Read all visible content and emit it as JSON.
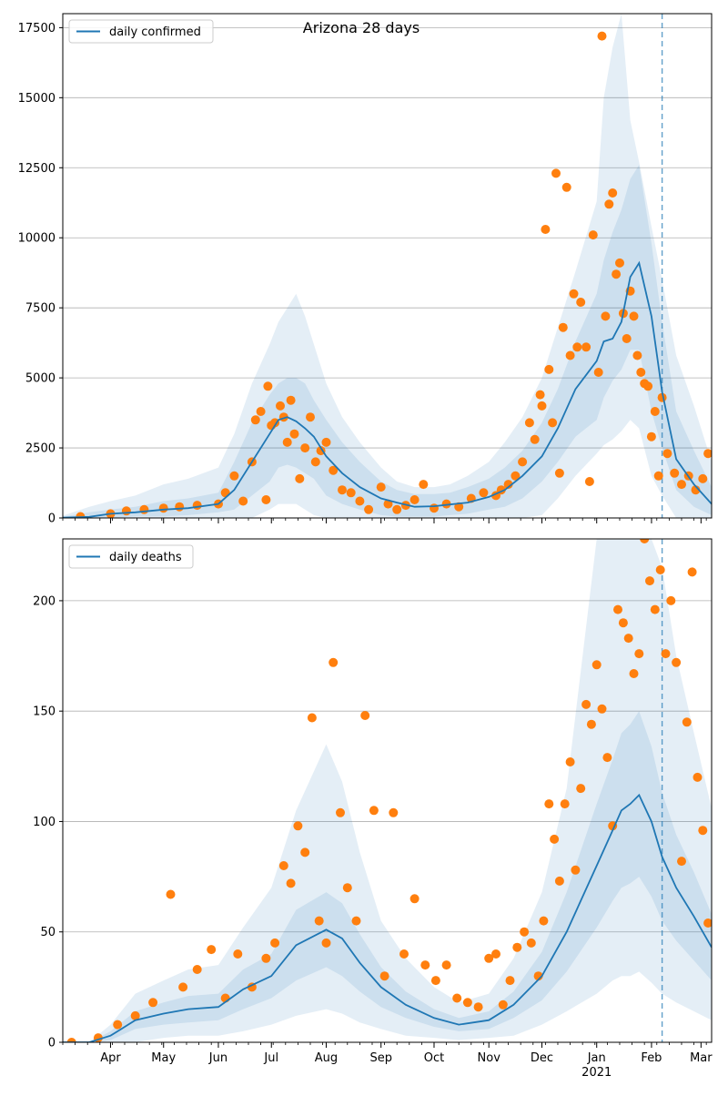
{
  "title": "Arizona 28 days",
  "colors": {
    "line": "#1f77b4",
    "points": "#ff7f0e",
    "band": "#1f77b4",
    "grid": "#b0b0b0",
    "vline": "#1f77b4"
  },
  "months": [
    "Apr",
    "May",
    "Jun",
    "Jul",
    "Aug",
    "Sep",
    "Oct",
    "Nov",
    "Dec",
    "Jan",
    "Feb",
    "Mar"
  ],
  "year_label": "2021",
  "chart_data": [
    {
      "type": "line",
      "legend": "daily confirmed",
      "legend_position": "top-left",
      "grid": "horizontal",
      "x_unit": "date",
      "x_range": [
        "2020-03-05",
        "2021-03-07"
      ],
      "ylim": [
        0,
        18000
      ],
      "yticks": [
        0,
        2500,
        5000,
        7500,
        10000,
        12500,
        15000,
        17500
      ],
      "ytick_labels": [
        "0",
        "2500",
        "5000",
        "7500",
        "10000",
        "12500",
        "15000",
        "17500"
      ],
      "forecast_start": "2021-02-07",
      "line": {
        "dates": [
          "2020-03-05",
          "2020-03-20",
          "2020-04-01",
          "2020-04-15",
          "2020-05-01",
          "2020-05-15",
          "2020-06-01",
          "2020-06-10",
          "2020-06-20",
          "2020-06-30",
          "2020-07-05",
          "2020-07-10",
          "2020-07-15",
          "2020-07-20",
          "2020-07-25",
          "2020-08-01",
          "2020-08-10",
          "2020-08-20",
          "2020-09-01",
          "2020-09-10",
          "2020-09-20",
          "2020-10-01",
          "2020-10-10",
          "2020-10-20",
          "2020-11-01",
          "2020-11-10",
          "2020-11-20",
          "2020-12-01",
          "2020-12-10",
          "2020-12-20",
          "2021-01-01",
          "2021-01-05",
          "2021-01-10",
          "2021-01-15",
          "2021-01-20",
          "2021-01-25",
          "2021-02-01",
          "2021-02-07",
          "2021-02-15",
          "2021-02-25",
          "2021-03-07"
        ],
        "values": [
          10,
          40,
          150,
          200,
          300,
          350,
          500,
          1000,
          2000,
          3000,
          3500,
          3600,
          3450,
          3200,
          2900,
          2200,
          1600,
          1100,
          700,
          550,
          400,
          420,
          480,
          550,
          750,
          1000,
          1500,
          2200,
          3200,
          4600,
          5600,
          6300,
          6400,
          7000,
          8600,
          9100,
          7200,
          4500,
          2100,
          1200,
          500
        ]
      },
      "band_inner": {
        "lower": [
          0,
          0,
          0,
          60,
          60,
          100,
          200,
          300,
          800,
          1300,
          1800,
          1900,
          1800,
          1600,
          1400,
          800,
          500,
          300,
          100,
          50,
          50,
          50,
          100,
          150,
          300,
          400,
          700,
          1300,
          2000,
          2900,
          3500,
          4300,
          4900,
          5300,
          6000,
          6000,
          3800,
          2500,
          1000,
          400,
          100
        ],
        "upper": [
          40,
          200,
          300,
          400,
          600,
          700,
          900,
          2000,
          3400,
          4400,
          4800,
          5000,
          5000,
          4800,
          4200,
          3500,
          2700,
          2000,
          1300,
          1000,
          850,
          850,
          900,
          1100,
          1400,
          1800,
          2400,
          3400,
          4600,
          6300,
          8000,
          9200,
          10200,
          11000,
          12100,
          12600,
          9800,
          7000,
          3800,
          2400,
          1100
        ]
      },
      "band_outer": {
        "lower": [
          0,
          0,
          0,
          0,
          0,
          0,
          0,
          0,
          0,
          300,
          500,
          500,
          500,
          300,
          100,
          0,
          0,
          0,
          0,
          0,
          0,
          0,
          0,
          0,
          0,
          0,
          0,
          100,
          700,
          1500,
          2300,
          2600,
          2800,
          3100,
          3500,
          3200,
          1500,
          800,
          0,
          0,
          0
        ],
        "upper": [
          80,
          400,
          600,
          800,
          1200,
          1400,
          1800,
          3000,
          4800,
          6200,
          7000,
          7500,
          8000,
          7200,
          6200,
          4800,
          3600,
          2700,
          1800,
          1300,
          1100,
          1100,
          1200,
          1500,
          2000,
          2700,
          3600,
          5000,
          6800,
          8800,
          11300,
          15000,
          16800,
          18000,
          14200,
          12700,
          10400,
          8500,
          5800,
          4000,
          2000
        ]
      },
      "points": {
        "dates": [
          "2020-03-15",
          "2020-04-01",
          "2020-04-10",
          "2020-04-20",
          "2020-05-01",
          "2020-05-10",
          "2020-05-20",
          "2020-06-01",
          "2020-06-05",
          "2020-06-10",
          "2020-06-15",
          "2020-06-20",
          "2020-06-22",
          "2020-06-25",
          "2020-06-28",
          "2020-06-29",
          "2020-07-01",
          "2020-07-03",
          "2020-07-06",
          "2020-07-08",
          "2020-07-10",
          "2020-07-12",
          "2020-07-14",
          "2020-07-17",
          "2020-07-20",
          "2020-07-23",
          "2020-07-26",
          "2020-07-29",
          "2020-08-01",
          "2020-08-05",
          "2020-08-10",
          "2020-08-15",
          "2020-08-20",
          "2020-08-25",
          "2020-09-01",
          "2020-09-05",
          "2020-09-10",
          "2020-09-15",
          "2020-09-20",
          "2020-09-25",
          "2020-10-01",
          "2020-10-08",
          "2020-10-15",
          "2020-10-22",
          "2020-10-29",
          "2020-11-05",
          "2020-11-08",
          "2020-11-12",
          "2020-11-16",
          "2020-11-20",
          "2020-11-24",
          "2020-11-27",
          "2020-11-30",
          "2020-12-01",
          "2020-12-03",
          "2020-12-05",
          "2020-12-07",
          "2020-12-09",
          "2020-12-11",
          "2020-12-13",
          "2020-12-15",
          "2020-12-17",
          "2020-12-19",
          "2020-12-21",
          "2020-12-23",
          "2020-12-26",
          "2020-12-28",
          "2020-12-30",
          "2021-01-02",
          "2021-01-04",
          "2021-01-06",
          "2021-01-08",
          "2021-01-10",
          "2021-01-12",
          "2021-01-14",
          "2021-01-16",
          "2021-01-18",
          "2021-01-20",
          "2021-01-22",
          "2021-01-24",
          "2021-01-26",
          "2021-01-28",
          "2021-01-30",
          "2021-02-01",
          "2021-02-03",
          "2021-02-05",
          "2021-02-07",
          "2021-02-10",
          "2021-02-14",
          "2021-02-18",
          "2021-02-22",
          "2021-02-26",
          "2021-03-02",
          "2021-03-05"
        ],
        "values": [
          50,
          150,
          250,
          300,
          350,
          400,
          450,
          500,
          900,
          1500,
          600,
          2000,
          3500,
          3800,
          650,
          4700,
          3300,
          3400,
          4000,
          3600,
          2700,
          4200,
          3000,
          1400,
          2500,
          3600,
          2000,
          2400,
          2700,
          1700,
          1000,
          900,
          600,
          300,
          1100,
          500,
          300,
          450,
          650,
          1200,
          350,
          500,
          400,
          700,
          900,
          800,
          1000,
          1200,
          1500,
          2000,
          3400,
          2800,
          4400,
          4000,
          10300,
          5300,
          3400,
          12300,
          1600,
          6800,
          11800,
          5800,
          8000,
          6100,
          7700,
          6100,
          1300,
          10100,
          5200,
          17200,
          7200,
          11200,
          11600,
          8700,
          9100,
          7300,
          6400,
          8100,
          7200,
          5800,
          5200,
          4800,
          4700,
          2900,
          3800,
          1500,
          4300,
          2300,
          1600,
          1200,
          1500,
          1000,
          1400,
          2300
        ]
      }
    },
    {
      "type": "line",
      "legend": "daily deaths",
      "legend_position": "top-left",
      "grid": "horizontal",
      "x_unit": "date",
      "x_range": [
        "2020-03-05",
        "2021-03-07"
      ],
      "ylim": [
        0,
        228
      ],
      "yticks": [
        0,
        50,
        100,
        150,
        200
      ],
      "ytick_labels": [
        "0",
        "50",
        "100",
        "150",
        "200"
      ],
      "forecast_start": "2021-02-07",
      "line": {
        "dates": [
          "2020-03-05",
          "2020-03-20",
          "2020-04-01",
          "2020-04-15",
          "2020-05-01",
          "2020-05-15",
          "2020-06-01",
          "2020-06-15",
          "2020-07-01",
          "2020-07-15",
          "2020-08-01",
          "2020-08-10",
          "2020-08-20",
          "2020-09-01",
          "2020-09-15",
          "2020-10-01",
          "2020-10-15",
          "2020-11-01",
          "2020-11-15",
          "2020-12-01",
          "2020-12-15",
          "2021-01-01",
          "2021-01-10",
          "2021-01-15",
          "2021-01-20",
          "2021-01-25",
          "2021-02-01",
          "2021-02-07",
          "2021-02-15",
          "2021-02-25",
          "2021-03-07"
        ],
        "values": [
          0,
          0,
          3,
          10,
          13,
          15,
          16,
          24,
          30,
          44,
          51,
          47,
          36,
          25,
          17,
          11,
          8,
          10,
          17,
          30,
          50,
          80,
          96,
          105,
          108,
          112,
          100,
          84,
          70,
          57,
          43
        ]
      },
      "band_inner": {
        "lower": [
          0,
          0,
          1,
          6,
          8,
          9,
          10,
          15,
          20,
          28,
          34,
          30,
          23,
          16,
          11,
          7,
          5,
          6,
          11,
          19,
          32,
          52,
          64,
          70,
          72,
          75,
          66,
          55,
          46,
          37,
          28
        ],
        "upper": [
          0,
          0,
          5,
          14,
          18,
          21,
          22,
          33,
          40,
          60,
          68,
          63,
          49,
          34,
          23,
          15,
          11,
          14,
          23,
          41,
          68,
          108,
          128,
          140,
          144,
          150,
          134,
          113,
          94,
          77,
          58
        ]
      },
      "band_outer": {
        "lower": [
          0,
          0,
          0,
          0,
          2,
          3,
          3,
          5,
          8,
          12,
          15,
          13,
          9,
          6,
          3,
          2,
          1,
          2,
          3,
          8,
          14,
          22,
          28,
          30,
          30,
          32,
          27,
          22,
          18,
          14,
          10
        ],
        "upper": [
          0,
          0,
          8,
          22,
          28,
          33,
          35,
          52,
          70,
          105,
          135,
          118,
          86,
          55,
          38,
          25,
          18,
          22,
          38,
          68,
          115,
          228,
          228,
          228,
          228,
          228,
          228,
          215,
          175,
          140,
          106
        ]
      },
      "points": {
        "dates": [
          "2020-03-10",
          "2020-03-25",
          "2020-04-05",
          "2020-04-15",
          "2020-04-25",
          "2020-05-05",
          "2020-05-12",
          "2020-05-20",
          "2020-05-28",
          "2020-06-05",
          "2020-06-12",
          "2020-06-20",
          "2020-06-28",
          "2020-07-03",
          "2020-07-08",
          "2020-07-12",
          "2020-07-16",
          "2020-07-20",
          "2020-07-24",
          "2020-07-28",
          "2020-08-01",
          "2020-08-05",
          "2020-08-09",
          "2020-08-13",
          "2020-08-18",
          "2020-08-23",
          "2020-08-28",
          "2020-09-03",
          "2020-09-08",
          "2020-09-14",
          "2020-09-20",
          "2020-09-26",
          "2020-10-02",
          "2020-10-08",
          "2020-10-14",
          "2020-10-20",
          "2020-10-26",
          "2020-11-01",
          "2020-11-05",
          "2020-11-09",
          "2020-11-13",
          "2020-11-17",
          "2020-11-21",
          "2020-11-25",
          "2020-11-29",
          "2020-12-02",
          "2020-12-05",
          "2020-12-08",
          "2020-12-11",
          "2020-12-14",
          "2020-12-17",
          "2020-12-20",
          "2020-12-23",
          "2020-12-26",
          "2020-12-29",
          "2021-01-01",
          "2021-01-04",
          "2021-01-07",
          "2021-01-10",
          "2021-01-13",
          "2021-01-16",
          "2021-01-19",
          "2021-01-22",
          "2021-01-25",
          "2021-01-28",
          "2021-01-31",
          "2021-02-03",
          "2021-02-06",
          "2021-02-09",
          "2021-02-12",
          "2021-02-15",
          "2021-02-18",
          "2021-02-21",
          "2021-02-24",
          "2021-02-27",
          "2021-03-02",
          "2021-03-05"
        ],
        "values": [
          0,
          2,
          8,
          12,
          18,
          67,
          25,
          33,
          42,
          20,
          40,
          25,
          38,
          45,
          80,
          72,
          98,
          86,
          147,
          55,
          45,
          172,
          104,
          70,
          55,
          148,
          105,
          30,
          104,
          40,
          65,
          35,
          28,
          35,
          20,
          18,
          16,
          38,
          40,
          17,
          28,
          43,
          50,
          45,
          30,
          55,
          108,
          92,
          73,
          108,
          127,
          78,
          115,
          153,
          144,
          171,
          151,
          129,
          98,
          196,
          190,
          183,
          167,
          176,
          231,
          209,
          196,
          214,
          176,
          200,
          172,
          82,
          145,
          213,
          120,
          96,
          54
        ]
      }
    }
  ]
}
